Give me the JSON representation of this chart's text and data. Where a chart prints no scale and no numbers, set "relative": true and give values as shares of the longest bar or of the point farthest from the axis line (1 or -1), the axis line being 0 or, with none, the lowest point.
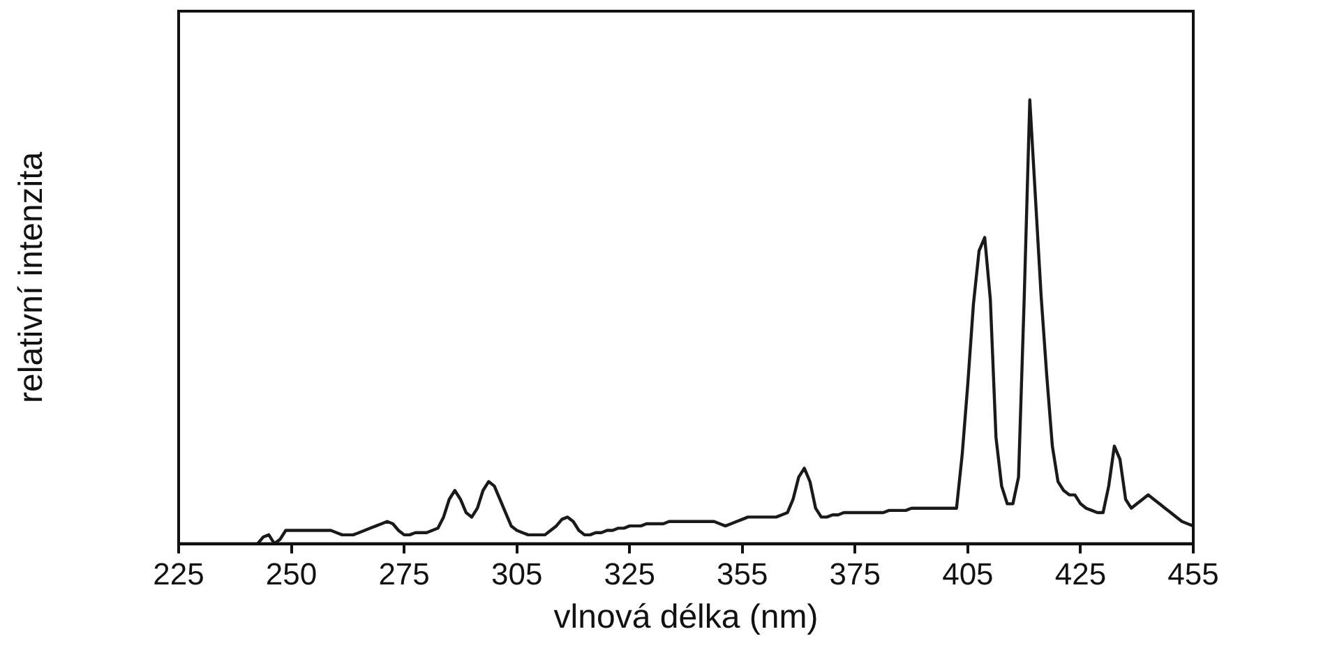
{
  "chart_data": {
    "type": "line",
    "xlabel": "vlnová délka (nm)",
    "ylabel": "relativní intenzita",
    "relative": true,
    "grid": false,
    "legend": false,
    "marker": "none",
    "line_style": "solid",
    "categories": [
      "225",
      null,
      null,
      null,
      null,
      null,
      null,
      null,
      null,
      null,
      null,
      null,
      null,
      null,
      null,
      null,
      null,
      null,
      null,
      null,
      "250",
      null,
      null,
      null,
      null,
      null,
      null,
      null,
      null,
      null,
      null,
      null,
      null,
      null,
      null,
      null,
      null,
      null,
      null,
      null,
      "275",
      null,
      null,
      null,
      null,
      null,
      null,
      null,
      null,
      null,
      null,
      null,
      null,
      null,
      null,
      null,
      null,
      null,
      null,
      null,
      "305",
      null,
      null,
      null,
      null,
      null,
      null,
      null,
      null,
      null,
      null,
      null,
      null,
      null,
      null,
      null,
      null,
      null,
      null,
      null,
      "325",
      null,
      null,
      null,
      null,
      null,
      null,
      null,
      null,
      null,
      null,
      null,
      null,
      null,
      null,
      null,
      null,
      null,
      null,
      null,
      "355",
      null,
      null,
      null,
      null,
      null,
      null,
      null,
      null,
      null,
      null,
      null,
      null,
      null,
      null,
      null,
      null,
      null,
      null,
      null,
      "375",
      null,
      null,
      null,
      null,
      null,
      null,
      null,
      null,
      null,
      null,
      null,
      null,
      null,
      null,
      null,
      null,
      null,
      null,
      null,
      "405",
      null,
      null,
      null,
      null,
      null,
      null,
      null,
      null,
      null,
      null,
      null,
      null,
      null,
      null,
      null,
      null,
      null,
      null,
      null,
      "425",
      null,
      null,
      null,
      null,
      null,
      null,
      null,
      null,
      null,
      null,
      null,
      null,
      null,
      null,
      null,
      null,
      null,
      null,
      null,
      "455"
    ],
    "series": [
      {
        "color": "#1a1a1a",
        "values": [
          null,
          null,
          null,
          null,
          null,
          null,
          null,
          null,
          null,
          null,
          null,
          null,
          null,
          null,
          0,
          0.015,
          0.02,
          0,
          0.01,
          0.03,
          0.03,
          0.03,
          0.03,
          0.03,
          0.03,
          0.03,
          0.03,
          0.03,
          0.025,
          0.02,
          0.02,
          0.02,
          0.025,
          0.03,
          0.035,
          0.04,
          0.045,
          0.05,
          0.045,
          0.03,
          0.02,
          0.02,
          0.025,
          0.025,
          0.025,
          0.03,
          0.035,
          0.06,
          0.1,
          0.12,
          0.1,
          0.07,
          0.06,
          0.08,
          0.12,
          0.14,
          0.13,
          0.1,
          0.07,
          0.04,
          0.03,
          0.025,
          0.02,
          0.02,
          0.02,
          0.02,
          0.03,
          0.04,
          0.055,
          0.06,
          0.05,
          0.03,
          0.02,
          0.02,
          0.025,
          0.025,
          0.03,
          0.03,
          0.035,
          0.035,
          0.04,
          0.04,
          0.04,
          0.045,
          0.045,
          0.045,
          0.045,
          0.05,
          0.05,
          0.05,
          0.05,
          0.05,
          0.05,
          0.05,
          0.05,
          0.05,
          0.045,
          0.04,
          0.045,
          0.05,
          0.055,
          0.06,
          0.06,
          0.06,
          0.06,
          0.06,
          0.06,
          0.065,
          0.07,
          0.1,
          0.15,
          0.17,
          0.14,
          0.08,
          0.06,
          0.06,
          0.065,
          0.065,
          0.07,
          0.07,
          0.07,
          0.07,
          0.07,
          0.07,
          0.07,
          0.07,
          0.075,
          0.075,
          0.075,
          0.075,
          0.08,
          0.08,
          0.08,
          0.08,
          0.08,
          0.08,
          0.08,
          0.08,
          0.08,
          0.2,
          0.36,
          0.54,
          0.66,
          0.69,
          0.55,
          0.24,
          0.13,
          0.09,
          0.09,
          0.15,
          0.55,
          1,
          0.78,
          0.56,
          0.38,
          0.22,
          0.14,
          0.12,
          0.11,
          0.11,
          0.09,
          0.08,
          0.075,
          0.07,
          0.07,
          0.13,
          0.22,
          0.19,
          0.1,
          0.08,
          0.09,
          0.1,
          0.11,
          0.1,
          0.09,
          0.08,
          0.07,
          0.06,
          0.05,
          0.045,
          0.04
        ]
      }
    ]
  }
}
